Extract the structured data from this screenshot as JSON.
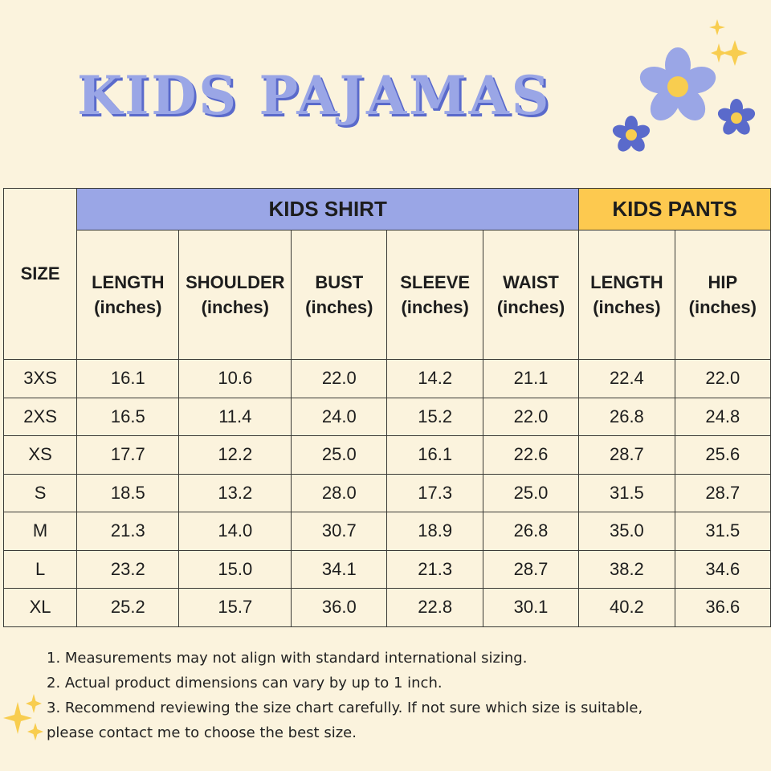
{
  "title": "KIDS PAJAMAS",
  "colors": {
    "background": "#fbf3dd",
    "shirt_header": "#9aa6e6",
    "pants_header": "#fdc94f",
    "title": "#9aa6e6",
    "flower_light": "#9aa6e6",
    "flower_dark": "#5a6acb",
    "flower_center": "#f8cd4f",
    "sparkle": "#f8cd4f"
  },
  "decorations": [
    "flower-icon",
    "sparkle-icon"
  ],
  "table": {
    "size_header": "SIZE",
    "group_shirt": "KIDS SHIRT",
    "group_pants": "KIDS PANTS",
    "columns": [
      {
        "name": "LENGTH",
        "unit": "(inches)"
      },
      {
        "name": "SHOULDER",
        "unit": "(inches)"
      },
      {
        "name": "BUST",
        "unit": "(inches)"
      },
      {
        "name": "SLEEVE",
        "unit": "(inches)"
      },
      {
        "name": "WAIST",
        "unit": "(inches)"
      },
      {
        "name": "LENGTH",
        "unit": "(inches)"
      },
      {
        "name": "HIP",
        "unit": "(inches)"
      }
    ],
    "rows": [
      {
        "size": "3XS",
        "values": [
          "16.1",
          "10.6",
          "22.0",
          "14.2",
          "21.1",
          "22.4",
          "22.0"
        ]
      },
      {
        "size": "2XS",
        "values": [
          "16.5",
          "11.4",
          "24.0",
          "15.2",
          "22.0",
          "26.8",
          "24.8"
        ]
      },
      {
        "size": "XS",
        "values": [
          "17.7",
          "12.2",
          "25.0",
          "16.1",
          "22.6",
          "28.7",
          "25.6"
        ]
      },
      {
        "size": "S",
        "values": [
          "18.5",
          "13.2",
          "28.0",
          "17.3",
          "25.0",
          "31.5",
          "28.7"
        ]
      },
      {
        "size": "M",
        "values": [
          "21.3",
          "14.0",
          "30.7",
          "18.9",
          "26.8",
          "35.0",
          "31.5"
        ]
      },
      {
        "size": "L",
        "values": [
          "23.2",
          "15.0",
          "34.1",
          "21.3",
          "28.7",
          "38.2",
          "34.6"
        ]
      },
      {
        "size": "XL",
        "values": [
          "25.2",
          "15.7",
          "36.0",
          "22.8",
          "30.1",
          "40.2",
          "36.6"
        ]
      }
    ]
  },
  "notes": [
    "1. Measurements may not align with standard international sizing.",
    "2. Actual product dimensions can vary by up to 1 inch.",
    "3. Recommend reviewing the size chart carefully. If not sure which size is suitable,",
    "please contact me to choose the best size."
  ]
}
